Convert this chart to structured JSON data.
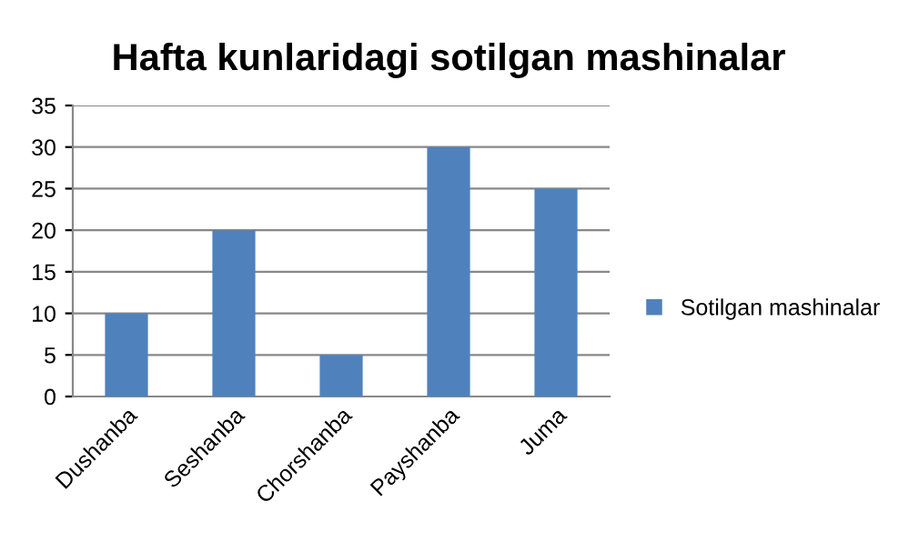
{
  "chart_data": {
    "type": "bar",
    "title": "Hafta kunlaridagi sotilgan mashinalar",
    "categories": [
      "Dushanba",
      "Seshanba",
      "Chorshanba",
      "Payshanba",
      "Juma"
    ],
    "series": [
      {
        "name": "Sotilgan mashinalar",
        "color": "#4f81bd",
        "values": [
          10,
          20,
          5,
          30,
          25
        ]
      }
    ],
    "ylim": [
      0,
      35
    ],
    "yticks": [
      0,
      5,
      10,
      15,
      20,
      25,
      30,
      35
    ],
    "grid": "y",
    "legend": "right"
  }
}
